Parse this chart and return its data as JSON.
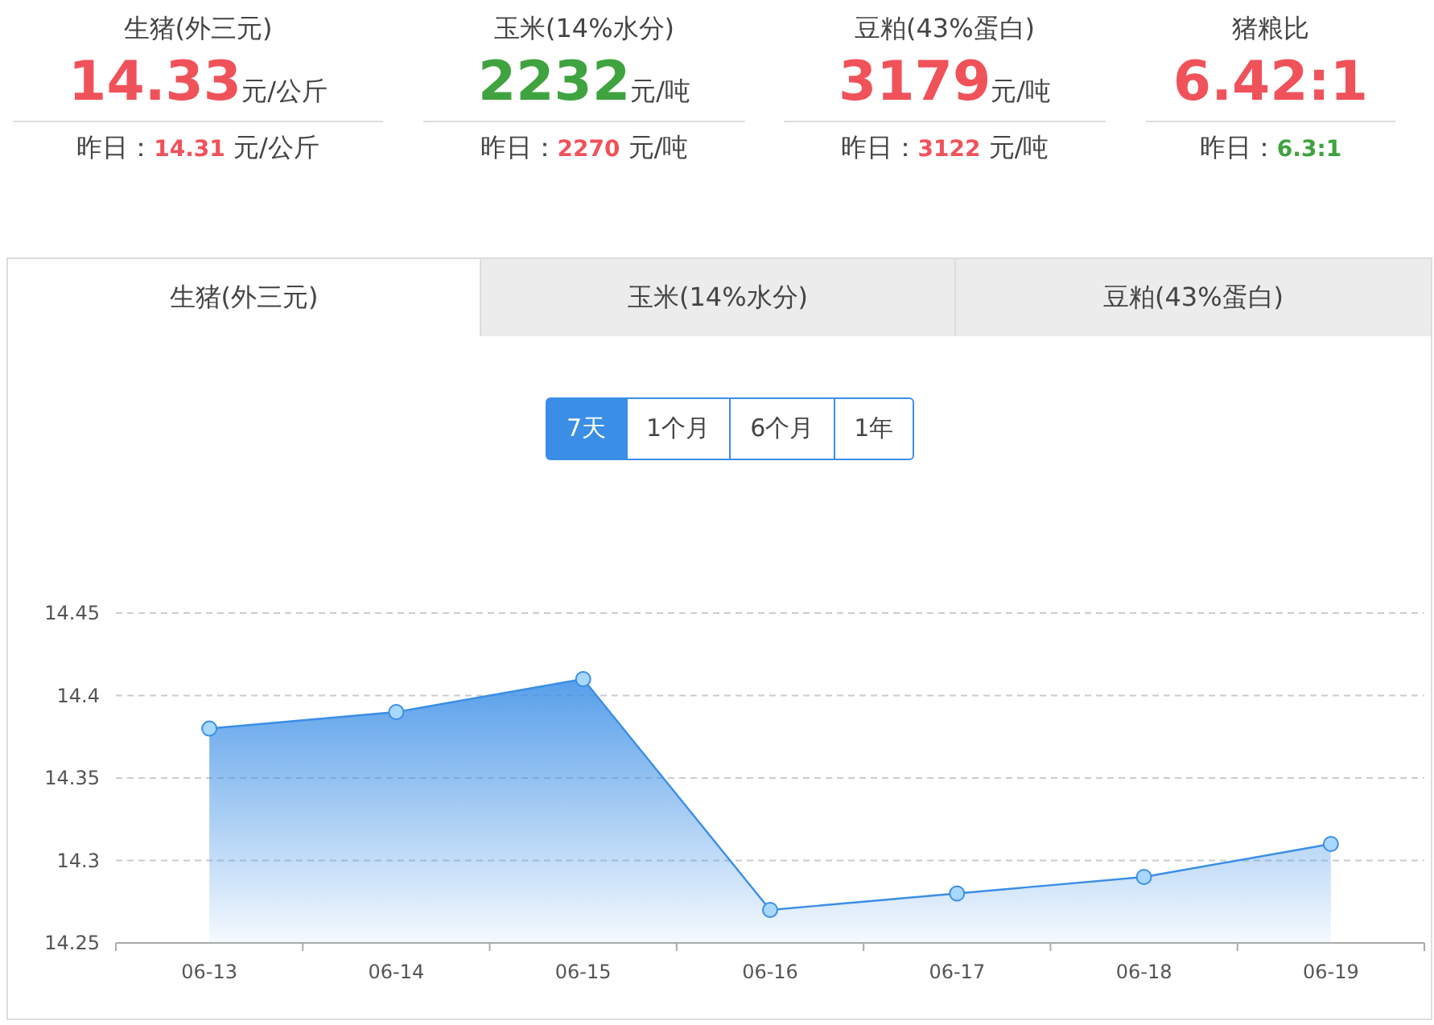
{
  "chart_data": [
    {
      "type": "other",
      "title": "生猪(外三元)",
      "values": [
        14.33,
        14.31
      ],
      "data_labels": true,
      "colors": [
        "#f0525a",
        "#f0525a"
      ],
      "annotations": [
        "昨日：",
        "元/公斤"
      ]
    },
    {
      "type": "other",
      "title": "玉米(14%水分)",
      "values": [
        2232,
        2270
      ],
      "data_labels": true,
      "colors": [
        "#3fa33f",
        "#f0525a"
      ],
      "annotations": [
        "昨日：",
        "元/吨"
      ]
    },
    {
      "type": "other",
      "title": "豆粕(43%蛋白)",
      "values": [
        3179,
        3122
      ],
      "data_labels": true,
      "colors": [
        "#f0525a",
        "#f0525a"
      ],
      "annotations": [
        "昨日：",
        "元/吨"
      ]
    },
    {
      "type": "other",
      "title": "猪粮比",
      "values": [
        6.42,
        6.3
      ],
      "value_labels": [
        "6.42:1",
        "6.3:1"
      ],
      "colors": [
        "#f0525a",
        "#3fa33f"
      ],
      "annotations": [
        "昨日："
      ]
    },
    {
      "type": "area",
      "title": "生猪(外三元)",
      "annotations": [
        "玉米(14%水分)",
        "豆粕(43%蛋白)",
        "7天",
        "1个月",
        "6个月",
        "1年"
      ],
      "categories": [
        "06-13",
        "06-14",
        "06-15",
        "06-16",
        "06-17",
        "06-18",
        "06-19"
      ],
      "series": [
        {
          "color": "#3a8ee6",
          "values": [
            14.38,
            14.39,
            14.41,
            14.27,
            14.28,
            14.29,
            14.31
          ]
        }
      ],
      "ylim": [
        14.25,
        14.45
      ],
      "yticks": [
        14.25,
        14.3,
        14.35,
        14.4,
        14.45
      ],
      "grid": "y",
      "marker": "circle"
    }
  ]
}
